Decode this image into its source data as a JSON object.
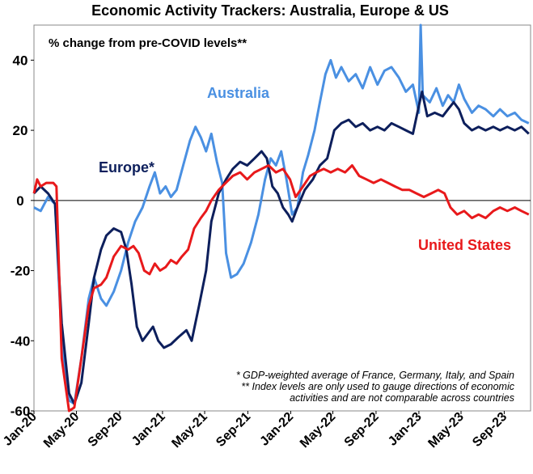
{
  "chart_data": {
    "type": "line",
    "title": "Economic Activity Trackers: Australia, Europe & US",
    "subtitle": "% change from pre-COVID levels**",
    "ylim": [
      -60,
      50
    ],
    "yticks": [
      40,
      20,
      0,
      -20,
      -40,
      -60
    ],
    "ytick_labels": [
      "40",
      "20",
      "0",
      "-20",
      "-40",
      "-60"
    ],
    "xlim": [
      "2020-01-01",
      "2023-11-15"
    ],
    "xticks": [
      "2020-01-01",
      "2020-05-01",
      "2020-09-01",
      "2021-01-01",
      "2021-05-01",
      "2021-09-01",
      "2022-01-01",
      "2022-05-01",
      "2022-09-01",
      "2023-01-01",
      "2023-05-01",
      "2023-09-01"
    ],
    "xtick_labels": [
      "Jan-20",
      "May-20",
      "Sep-20",
      "Jan-21",
      "May-21",
      "Sep-21",
      "Jan-22",
      "May-22",
      "Sep-22",
      "Jan-23",
      "May-23",
      "Sep-23"
    ],
    "grid": false,
    "series": [
      {
        "name": "Australia",
        "color": "#4a90e2",
        "points": [
          [
            "2020-01-01",
            -2
          ],
          [
            "2020-01-20",
            -3
          ],
          [
            "2020-02-10",
            1
          ],
          [
            "2020-03-01",
            -1
          ],
          [
            "2020-03-20",
            -40
          ],
          [
            "2020-04-10",
            -57
          ],
          [
            "2020-04-25",
            -58
          ],
          [
            "2020-05-15",
            -45
          ],
          [
            "2020-06-05",
            -28
          ],
          [
            "2020-06-20",
            -22
          ],
          [
            "2020-07-10",
            -28
          ],
          [
            "2020-07-25",
            -30
          ],
          [
            "2020-08-15",
            -26
          ],
          [
            "2020-09-05",
            -20
          ],
          [
            "2020-09-25",
            -12
          ],
          [
            "2020-10-15",
            -6
          ],
          [
            "2020-11-05",
            -2
          ],
          [
            "2020-11-25",
            4
          ],
          [
            "2020-12-10",
            8
          ],
          [
            "2020-12-25",
            2
          ],
          [
            "2021-01-10",
            4
          ],
          [
            "2021-01-25",
            1
          ],
          [
            "2021-02-10",
            3
          ],
          [
            "2021-03-01",
            10
          ],
          [
            "2021-03-20",
            17
          ],
          [
            "2021-04-05",
            21
          ],
          [
            "2021-04-20",
            18
          ],
          [
            "2021-05-05",
            14
          ],
          [
            "2021-05-20",
            19
          ],
          [
            "2021-06-05",
            11
          ],
          [
            "2021-06-20",
            5
          ],
          [
            "2021-07-01",
            -15
          ],
          [
            "2021-07-15",
            -22
          ],
          [
            "2021-08-01",
            -21
          ],
          [
            "2021-08-20",
            -18
          ],
          [
            "2021-09-10",
            -12
          ],
          [
            "2021-10-01",
            -4
          ],
          [
            "2021-10-20",
            6
          ],
          [
            "2021-11-05",
            12
          ],
          [
            "2021-11-20",
            10
          ],
          [
            "2021-12-05",
            14
          ],
          [
            "2021-12-20",
            6
          ],
          [
            "2022-01-05",
            -4
          ],
          [
            "2022-01-20",
            -2
          ],
          [
            "2022-02-05",
            8
          ],
          [
            "2022-02-20",
            13
          ],
          [
            "2022-03-10",
            20
          ],
          [
            "2022-03-25",
            28
          ],
          [
            "2022-04-10",
            36
          ],
          [
            "2022-04-25",
            40
          ],
          [
            "2022-05-10",
            35
          ],
          [
            "2022-05-25",
            38
          ],
          [
            "2022-06-15",
            34
          ],
          [
            "2022-07-05",
            36
          ],
          [
            "2022-07-25",
            32
          ],
          [
            "2022-08-15",
            38
          ],
          [
            "2022-09-05",
            33
          ],
          [
            "2022-09-25",
            37
          ],
          [
            "2022-10-15",
            38
          ],
          [
            "2022-11-05",
            35
          ],
          [
            "2022-11-25",
            31
          ],
          [
            "2022-12-15",
            33
          ],
          [
            "2023-01-01",
            25
          ],
          [
            "2023-01-06",
            50
          ],
          [
            "2023-01-12",
            30
          ],
          [
            "2023-02-01",
            28
          ],
          [
            "2023-02-20",
            32
          ],
          [
            "2023-03-10",
            27
          ],
          [
            "2023-03-25",
            30
          ],
          [
            "2023-04-10",
            28
          ],
          [
            "2023-04-25",
            33
          ],
          [
            "2023-05-10",
            29
          ],
          [
            "2023-06-01",
            25
          ],
          [
            "2023-06-20",
            27
          ],
          [
            "2023-07-10",
            26
          ],
          [
            "2023-08-01",
            24
          ],
          [
            "2023-08-20",
            26
          ],
          [
            "2023-09-10",
            24
          ],
          [
            "2023-10-01",
            25
          ],
          [
            "2023-10-20",
            23
          ],
          [
            "2023-11-10",
            22
          ]
        ]
      },
      {
        "name": "Europe*",
        "color": "#0d1f5c",
        "points": [
          [
            "2020-01-01",
            2
          ],
          [
            "2020-01-20",
            4
          ],
          [
            "2020-02-10",
            2
          ],
          [
            "2020-03-01",
            -1
          ],
          [
            "2020-03-20",
            -35
          ],
          [
            "2020-04-10",
            -55
          ],
          [
            "2020-04-25",
            -58
          ],
          [
            "2020-05-15",
            -52
          ],
          [
            "2020-06-05",
            -35
          ],
          [
            "2020-06-20",
            -22
          ],
          [
            "2020-07-10",
            -14
          ],
          [
            "2020-07-25",
            -10
          ],
          [
            "2020-08-15",
            -8
          ],
          [
            "2020-09-05",
            -9
          ],
          [
            "2020-09-20",
            -14
          ],
          [
            "2020-10-05",
            -24
          ],
          [
            "2020-10-20",
            -36
          ],
          [
            "2020-11-05",
            -40
          ],
          [
            "2020-11-20",
            -38
          ],
          [
            "2020-12-05",
            -36
          ],
          [
            "2020-12-20",
            -40
          ],
          [
            "2021-01-05",
            -42
          ],
          [
            "2021-01-25",
            -41
          ],
          [
            "2021-02-15",
            -39
          ],
          [
            "2021-03-10",
            -37
          ],
          [
            "2021-03-25",
            -40
          ],
          [
            "2021-04-15",
            -30
          ],
          [
            "2021-05-05",
            -20
          ],
          [
            "2021-05-20",
            -6
          ],
          [
            "2021-06-10",
            2
          ],
          [
            "2021-07-01",
            6
          ],
          [
            "2021-07-20",
            9
          ],
          [
            "2021-08-10",
            11
          ],
          [
            "2021-08-30",
            10
          ],
          [
            "2021-09-20",
            12
          ],
          [
            "2021-10-10",
            14
          ],
          [
            "2021-10-25",
            12
          ],
          [
            "2021-11-10",
            4
          ],
          [
            "2021-11-25",
            2
          ],
          [
            "2021-12-10",
            -2
          ],
          [
            "2021-12-25",
            -4
          ],
          [
            "2022-01-05",
            -6
          ],
          [
            "2022-01-20",
            -2
          ],
          [
            "2022-02-10",
            3
          ],
          [
            "2022-03-05",
            6
          ],
          [
            "2022-03-25",
            10
          ],
          [
            "2022-04-15",
            12
          ],
          [
            "2022-05-05",
            20
          ],
          [
            "2022-05-25",
            22
          ],
          [
            "2022-06-15",
            23
          ],
          [
            "2022-07-05",
            21
          ],
          [
            "2022-07-25",
            22
          ],
          [
            "2022-08-15",
            20
          ],
          [
            "2022-09-05",
            21
          ],
          [
            "2022-09-25",
            20
          ],
          [
            "2022-10-15",
            22
          ],
          [
            "2022-11-05",
            21
          ],
          [
            "2022-11-25",
            20
          ],
          [
            "2022-12-15",
            19
          ],
          [
            "2023-01-01",
            27
          ],
          [
            "2023-01-10",
            31
          ],
          [
            "2023-01-25",
            24
          ],
          [
            "2023-02-15",
            25
          ],
          [
            "2023-03-10",
            24
          ],
          [
            "2023-03-25",
            26
          ],
          [
            "2023-04-10",
            28
          ],
          [
            "2023-04-25",
            26
          ],
          [
            "2023-05-10",
            22
          ],
          [
            "2023-06-01",
            20
          ],
          [
            "2023-06-20",
            21
          ],
          [
            "2023-07-10",
            20
          ],
          [
            "2023-08-01",
            21
          ],
          [
            "2023-08-20",
            20
          ],
          [
            "2023-09-10",
            21
          ],
          [
            "2023-10-01",
            20
          ],
          [
            "2023-10-20",
            21
          ],
          [
            "2023-11-10",
            19
          ]
        ]
      },
      {
        "name": "United States",
        "color": "#e8191b",
        "points": [
          [
            "2020-01-01",
            2
          ],
          [
            "2020-01-10",
            6
          ],
          [
            "2020-01-20",
            4
          ],
          [
            "2020-02-05",
            5
          ],
          [
            "2020-02-25",
            5
          ],
          [
            "2020-03-05",
            4
          ],
          [
            "2020-03-20",
            -45
          ],
          [
            "2020-04-10",
            -60
          ],
          [
            "2020-04-25",
            -59
          ],
          [
            "2020-05-15",
            -45
          ],
          [
            "2020-06-05",
            -30
          ],
          [
            "2020-06-20",
            -25
          ],
          [
            "2020-07-10",
            -24
          ],
          [
            "2020-07-25",
            -22
          ],
          [
            "2020-08-15",
            -16
          ],
          [
            "2020-09-05",
            -13
          ],
          [
            "2020-09-25",
            -14
          ],
          [
            "2020-10-10",
            -13
          ],
          [
            "2020-10-25",
            -15
          ],
          [
            "2020-11-10",
            -20
          ],
          [
            "2020-11-25",
            -21
          ],
          [
            "2020-12-10",
            -18
          ],
          [
            "2020-12-25",
            -20
          ],
          [
            "2021-01-10",
            -19
          ],
          [
            "2021-01-25",
            -17
          ],
          [
            "2021-02-10",
            -18
          ],
          [
            "2021-02-25",
            -16
          ],
          [
            "2021-03-15",
            -14
          ],
          [
            "2021-04-01",
            -8
          ],
          [
            "2021-04-20",
            -5
          ],
          [
            "2021-05-05",
            -3
          ],
          [
            "2021-05-20",
            0
          ],
          [
            "2021-06-10",
            3
          ],
          [
            "2021-06-30",
            5
          ],
          [
            "2021-07-20",
            7
          ],
          [
            "2021-08-10",
            8
          ],
          [
            "2021-08-30",
            6
          ],
          [
            "2021-09-20",
            8
          ],
          [
            "2021-10-10",
            9
          ],
          [
            "2021-10-30",
            10
          ],
          [
            "2021-11-20",
            8
          ],
          [
            "2021-12-10",
            9
          ],
          [
            "2021-12-30",
            6
          ],
          [
            "2022-01-15",
            1
          ],
          [
            "2022-02-05",
            4
          ],
          [
            "2022-02-25",
            7
          ],
          [
            "2022-03-15",
            8
          ],
          [
            "2022-04-05",
            9
          ],
          [
            "2022-04-25",
            8
          ],
          [
            "2022-05-15",
            9
          ],
          [
            "2022-06-05",
            8
          ],
          [
            "2022-06-25",
            10
          ],
          [
            "2022-07-15",
            7
          ],
          [
            "2022-08-05",
            6
          ],
          [
            "2022-08-25",
            5
          ],
          [
            "2022-09-15",
            6
          ],
          [
            "2022-10-05",
            5
          ],
          [
            "2022-10-25",
            4
          ],
          [
            "2022-11-15",
            3
          ],
          [
            "2022-12-05",
            3
          ],
          [
            "2022-12-25",
            2
          ],
          [
            "2023-01-15",
            1
          ],
          [
            "2023-02-05",
            2
          ],
          [
            "2023-02-25",
            3
          ],
          [
            "2023-03-15",
            2
          ],
          [
            "2023-04-01",
            -2
          ],
          [
            "2023-04-20",
            -4
          ],
          [
            "2023-05-10",
            -3
          ],
          [
            "2023-06-01",
            -5
          ],
          [
            "2023-06-20",
            -4
          ],
          [
            "2023-07-10",
            -5
          ],
          [
            "2023-08-01",
            -3
          ],
          [
            "2023-08-20",
            -2
          ],
          [
            "2023-09-10",
            -3
          ],
          [
            "2023-10-01",
            -2
          ],
          [
            "2023-10-20",
            -3
          ],
          [
            "2023-11-10",
            -4
          ]
        ]
      }
    ],
    "footnotes": [
      "* GDP-weighted average of France, Germany, Italy, and Spain",
      "** Index levels are only used to gauge directions of economic",
      "activities and are not comparable across countries"
    ]
  }
}
